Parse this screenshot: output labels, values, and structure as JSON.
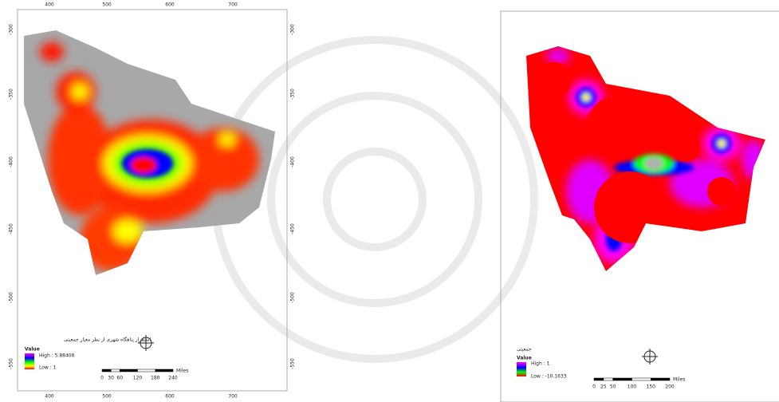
{
  "maps": [
    {
      "top_ticks": [
        400,
        500,
        600,
        700
      ],
      "bottom_ticks": [
        400,
        500,
        600,
        700
      ],
      "left_ticks": [
        -300,
        -350,
        -400,
        -450,
        -500,
        -550
      ],
      "right_ticks": [
        -300,
        -350,
        -400,
        -450,
        -500,
        -550
      ],
      "legend": {
        "title": "استقرار پناهگاه شهری از نظر معیار جمعیتی",
        "value_label": "Value",
        "high": "High : 5.88406",
        "low": "Low : 1"
      },
      "scale": {
        "ticks": [
          0,
          30,
          60,
          120,
          180,
          240
        ],
        "unit": "Miles"
      }
    },
    {
      "legend": {
        "title": "جمعیتی",
        "value_label": "Value",
        "high": "High : 1",
        "low": "Low : -10.1633"
      },
      "scale": {
        "ticks": [
          0,
          25,
          50,
          100,
          150,
          200
        ],
        "unit": "Miles"
      }
    }
  ]
}
